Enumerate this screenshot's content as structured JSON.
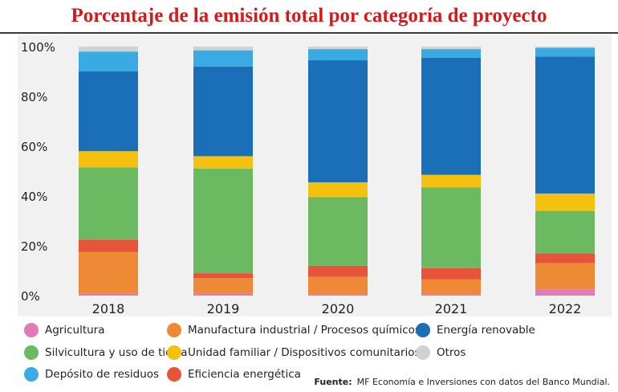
{
  "title": "Porcentaje de la emisión total por categoría de proyecto",
  "source": {
    "label": "Fuente:",
    "text": "MF Economía e Inversiones con datos del Banco Mundial."
  },
  "legend": [
    {
      "name": "Agricultura",
      "color": "#e07ab8"
    },
    {
      "name": "Manufactura industrial / Procesos químicos",
      "color": "#ee8a35"
    },
    {
      "name": "Energía renovable",
      "color": "#1a6fb8"
    },
    {
      "name": "Silvicultura y uso de tierra",
      "color": "#6bba62"
    },
    {
      "name": "Unidad familiar / Dispositivos comunitarios",
      "color": "#f5c10f"
    },
    {
      "name": "Otros",
      "color": "#cfd2d3"
    },
    {
      "name": "Depósito de residuos",
      "color": "#3aaae2"
    },
    {
      "name": "Eficiencia energética",
      "color": "#e8543a"
    }
  ],
  "chart_data": {
    "type": "bar",
    "stacked": true,
    "categories": [
      "2018",
      "2019",
      "2020",
      "2021",
      "2022"
    ],
    "ylim": [
      0,
      100
    ],
    "yticks": [
      "0%",
      "20%",
      "40%",
      "60%",
      "80%",
      "100%"
    ],
    "series": [
      {
        "name": "Agricultura",
        "color": "#e07ab8",
        "values": [
          1,
          1,
          0.5,
          0.5,
          2.5
        ]
      },
      {
        "name": "Manufactura industrial / Procesos químicos",
        "color": "#ee8a35",
        "values": [
          16.5,
          6,
          7,
          6,
          10.5
        ]
      },
      {
        "name": "Eficiencia energética",
        "color": "#e8543a",
        "values": [
          5,
          2,
          4.5,
          4.5,
          4
        ]
      },
      {
        "name": "Silvicultura y uso de tierra",
        "color": "#6bba62",
        "values": [
          29,
          42,
          27.5,
          32.5,
          17
        ]
      },
      {
        "name": "Unidad familiar / Dispositivos comunitarios",
        "color": "#f5c10f",
        "values": [
          6.5,
          5,
          6,
          5,
          7
        ]
      },
      {
        "name": "Energía renovable",
        "color": "#1a6fb8",
        "values": [
          32,
          36,
          49,
          47,
          55
        ]
      },
      {
        "name": "Depósito de residuos",
        "color": "#3aaae2",
        "values": [
          8,
          6.5,
          4.5,
          3.5,
          3.5
        ]
      },
      {
        "name": "Otros",
        "color": "#cfd2d3",
        "values": [
          2,
          1.5,
          1,
          1,
          0.5
        ]
      }
    ]
  }
}
